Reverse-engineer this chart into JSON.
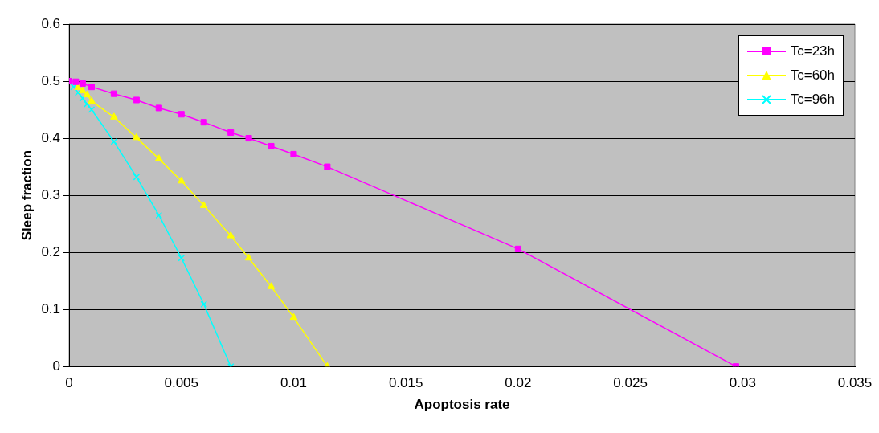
{
  "chart_data": {
    "type": "line",
    "xlabel": "Apoptosis rate",
    "ylabel": "Sleep fraction",
    "xlim": [
      0,
      0.035
    ],
    "xticks": [
      0,
      0.005,
      0.01,
      0.015,
      0.02,
      0.025,
      0.03,
      0.035
    ],
    "ylim": [
      0,
      0.6
    ],
    "yticks": [
      0,
      0.1,
      0.2,
      0.3,
      0.4,
      0.5,
      0.6
    ],
    "grid": "y",
    "legend": "top right",
    "series": [
      {
        "name": "Tc=23h",
        "color": "#ff00ff",
        "marker": "square",
        "x": [
          0,
          0.0003,
          0.0006,
          0.001,
          0.002,
          0.003,
          0.004,
          0.005,
          0.006,
          0.0072,
          0.008,
          0.009,
          0.01,
          0.0115,
          0.02,
          0.0297
        ],
        "values": [
          0.5,
          0.499,
          0.496,
          0.49,
          0.478,
          0.467,
          0.453,
          0.442,
          0.428,
          0.41,
          0.4,
          0.386,
          0.372,
          0.35,
          0.206,
          0
        ]
      },
      {
        "name": "Tc=60h",
        "color": "#ffff00",
        "marker": "triangle",
        "x": [
          0.0004,
          0.0006,
          0.0008,
          0.001,
          0.002,
          0.003,
          0.004,
          0.005,
          0.006,
          0.0072,
          0.008,
          0.009,
          0.01,
          0.0115
        ],
        "values": [
          0.489,
          0.483,
          0.476,
          0.465,
          0.437,
          0.401,
          0.364,
          0.325,
          0.282,
          0.229,
          0.19,
          0.14,
          0.086,
          0
        ]
      },
      {
        "name": "Tc=96h",
        "color": "#00ffff",
        "marker": "cross",
        "x": [
          0,
          0.0002,
          0.0004,
          0.0006,
          0.0008,
          0.001,
          0.002,
          0.003,
          0.004,
          0.005,
          0.006,
          0.0072
        ],
        "values": [
          0.5,
          0.49,
          0.48,
          0.47,
          0.46,
          0.45,
          0.394,
          0.332,
          0.265,
          0.19,
          0.109,
          0
        ]
      }
    ]
  }
}
